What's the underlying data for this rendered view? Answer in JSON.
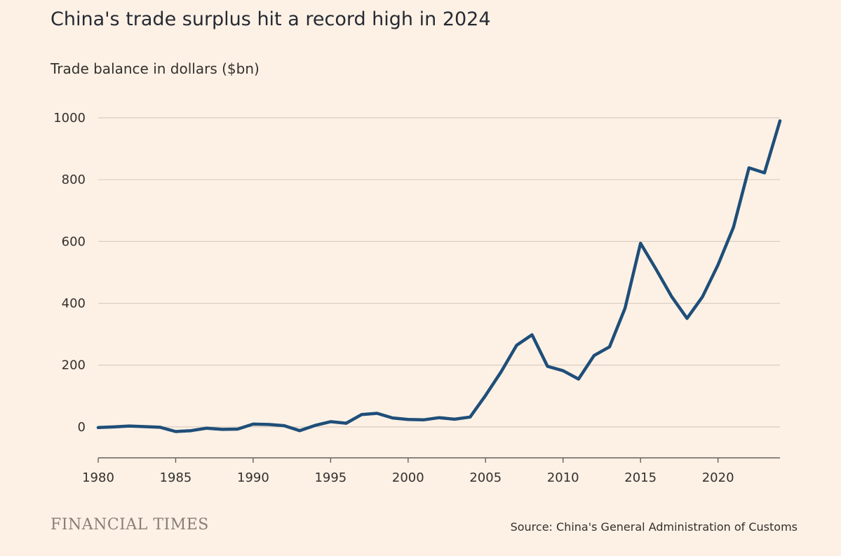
{
  "header": {
    "title": "China's trade surplus hit a record high in 2024",
    "subtitle": "Trade balance in dollars ($bn)"
  },
  "footer": {
    "brand": "FINANCIAL TIMES",
    "source": "Source: China's General Administration of Customs"
  },
  "colors": {
    "background": "#fdf1e5",
    "line": "#1f4e79",
    "grid": "#d9cdc0",
    "axis": "#66605c"
  },
  "chart_data": {
    "type": "line",
    "title": "China's trade surplus hit a record high in 2024",
    "ylabel": "Trade balance in dollars ($bn)",
    "xlim": [
      1980,
      2024
    ],
    "ylim": [
      -100,
      1000
    ],
    "x_ticks": [
      1980,
      1985,
      1990,
      1995,
      2000,
      2005,
      2010,
      2015,
      2020
    ],
    "y_ticks": [
      0,
      200,
      400,
      600,
      800,
      1000
    ],
    "grid": true,
    "x": [
      1980,
      1981,
      1982,
      1983,
      1984,
      1985,
      1986,
      1987,
      1988,
      1989,
      1990,
      1991,
      1992,
      1993,
      1994,
      1995,
      1996,
      1997,
      1998,
      1999,
      2000,
      2001,
      2002,
      2003,
      2004,
      2005,
      2006,
      2007,
      2008,
      2009,
      2010,
      2011,
      2012,
      2013,
      2014,
      2015,
      2016,
      2017,
      2018,
      2019,
      2020,
      2021,
      2022,
      2023,
      2024
    ],
    "series": [
      {
        "values": [
          -2,
          0,
          3,
          1,
          -1,
          -15,
          -12,
          -4,
          -8,
          -7,
          9,
          8,
          4,
          -12,
          5,
          17,
          12,
          40,
          44,
          29,
          24,
          23,
          30,
          25,
          32,
          102,
          178,
          264,
          298,
          196,
          182,
          155,
          231,
          259,
          384,
          594,
          510,
          422,
          351,
          421,
          524,
          646,
          838,
          822,
          990
        ]
      }
    ]
  }
}
